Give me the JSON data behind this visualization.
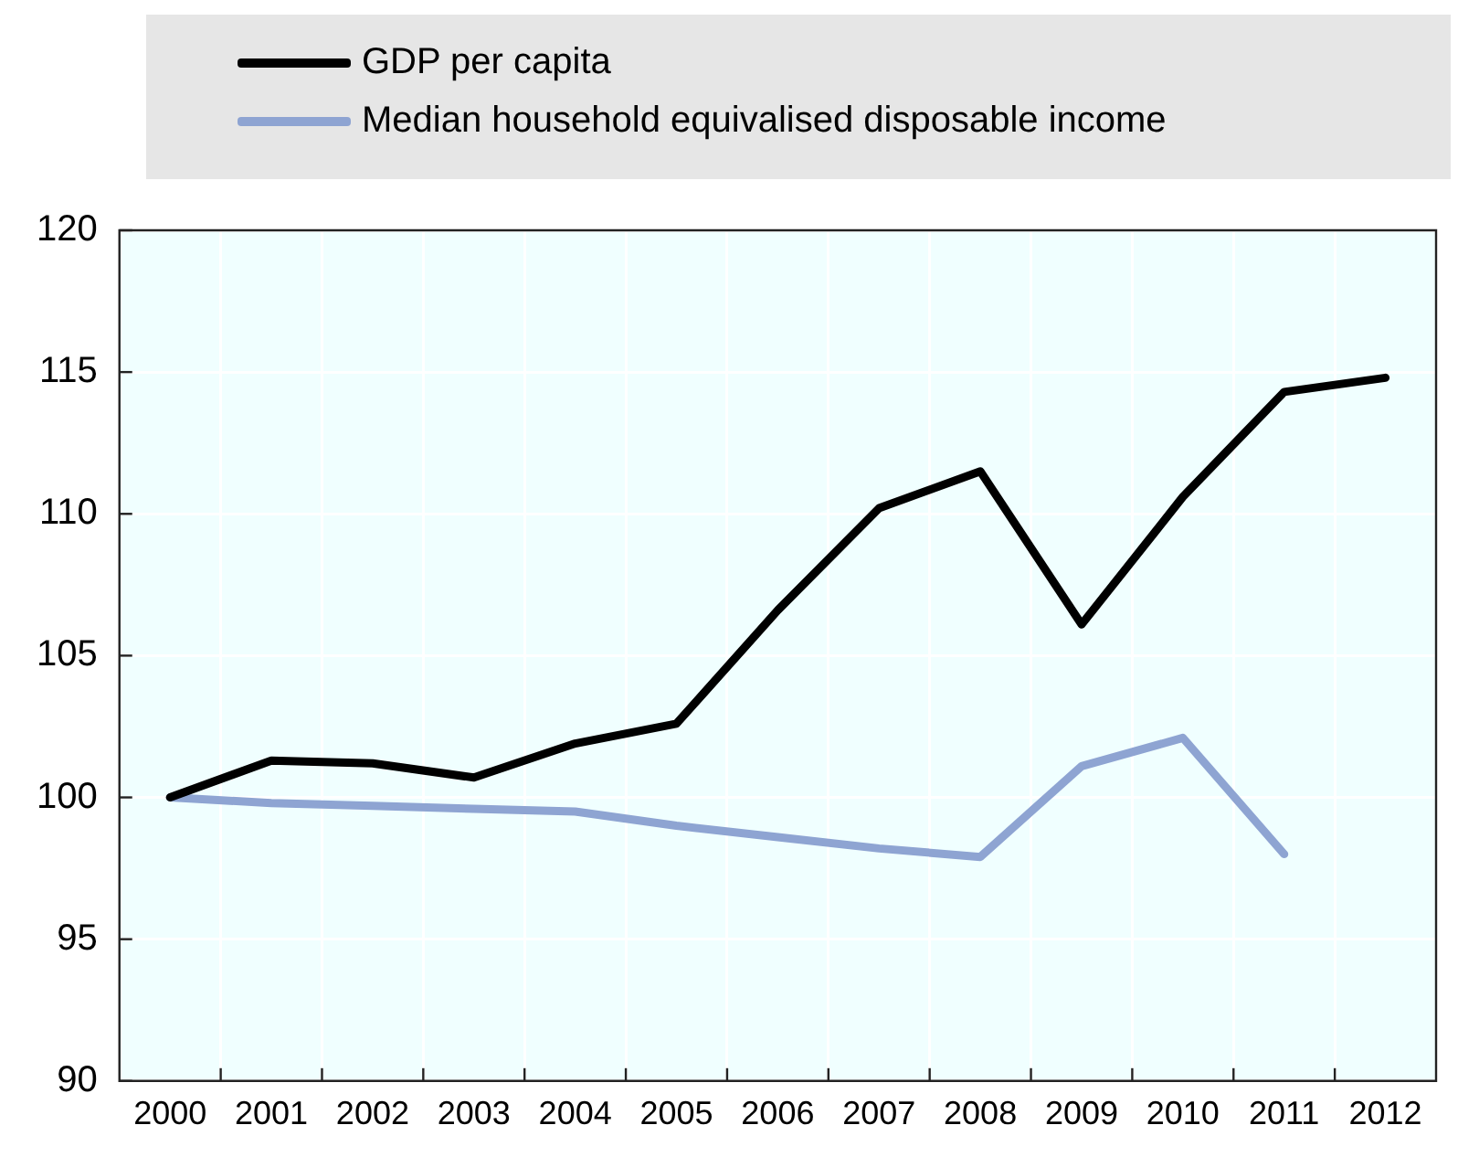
{
  "chart_data": {
    "type": "line",
    "categories": [
      "2000",
      "2001",
      "2002",
      "2003",
      "2004",
      "2005",
      "2006",
      "2007",
      "2008",
      "2009",
      "2010",
      "2011",
      "2012"
    ],
    "series": [
      {
        "name": "GDP per capita",
        "color": "#000000",
        "values": [
          100,
          101.3,
          101.2,
          100.7,
          101.9,
          102.6,
          106.6,
          110.2,
          111.5,
          106.1,
          110.6,
          114.3,
          114.8
        ]
      },
      {
        "name": "Median household equivalised disposable income",
        "color": "#8ea4d2",
        "values": [
          100,
          99.8,
          99.7,
          99.6,
          99.5,
          99.0,
          98.6,
          98.2,
          97.9,
          101.1,
          102.1,
          98.0,
          null
        ]
      }
    ],
    "ylim": [
      90,
      120
    ],
    "yticks": [
      90,
      95,
      100,
      105,
      110,
      115,
      120
    ],
    "grid": true,
    "legend": "top",
    "marker": "none",
    "line_style": "solid"
  }
}
